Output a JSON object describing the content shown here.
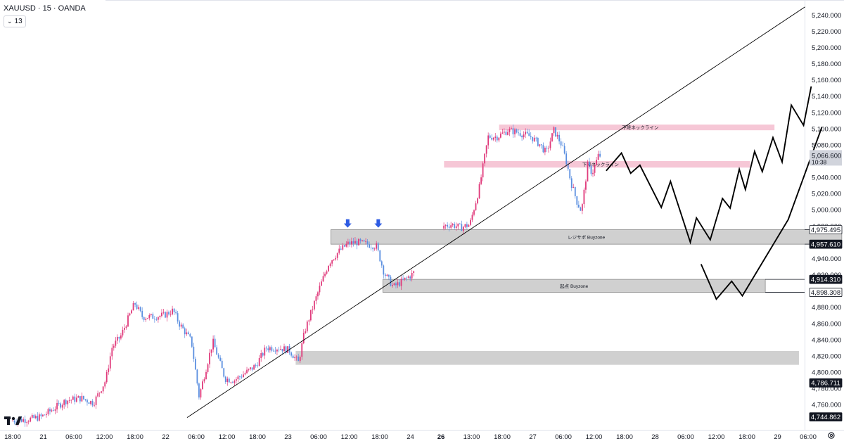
{
  "header": {
    "symbol_line": "XAUUSD · 15 · OANDA",
    "indicator_badge": "13"
  },
  "icons": {
    "logo": "tradingview-logo-icon",
    "settings": "gear-icon",
    "signal_markers": "arrow-down-icon"
  },
  "colors": {
    "bull_candle": "#e03a7b",
    "bear_candle": "#5b8fe0",
    "neckline_zone": "#f6c7d6",
    "buyzone": "#d0d0d0",
    "trendline": "#000000",
    "projection": "#000000",
    "arrow": "#2d5be3",
    "axis_label_dark_bg": "#131722"
  },
  "chart_data": {
    "type": "candlestick",
    "instrument": "XAUUSD",
    "timeframe": "15",
    "source": "OANDA",
    "ylim": [
      4735,
      5255
    ],
    "y_ticks": [
      4760,
      4780,
      4800,
      4820,
      4840,
      4860,
      4880,
      4900,
      4920,
      4940,
      4960,
      4980,
      5000,
      5020,
      5040,
      5060,
      5080,
      5100,
      5120,
      5140,
      5160,
      5180,
      5200,
      5220,
      5240
    ],
    "y_tick_labels": [
      "4,760.000",
      "4,780.000",
      "4,800.000",
      "4,820.000",
      "4,840.000",
      "4,860.000",
      "4,880.000",
      "4,900.000",
      "4,920.000",
      "4,940.000",
      "4,960.000",
      "4,980.000",
      "5,000.000",
      "5,020.000",
      "5,040.000",
      "5,060.000",
      "5,080.000",
      "5,100.000",
      "5,120.000",
      "5,140.000",
      "5,160.000",
      "5,180.000",
      "5,200.000",
      "5,220.000",
      "5,240.000"
    ],
    "price_labels": [
      {
        "label": "4,975.495",
        "value": 4975.495,
        "style": "outline"
      },
      {
        "label": "4,957.610",
        "value": 4957.61,
        "style": "dark"
      },
      {
        "label": "4,914.310",
        "value": 4914.31,
        "style": "dark"
      },
      {
        "label": "4,898.308",
        "value": 4898.308,
        "style": "outline"
      },
      {
        "label": "4,786.711",
        "value": 4786.711,
        "style": "dark"
      },
      {
        "label": "4,744.862",
        "value": 4744.862,
        "style": "dark"
      }
    ],
    "last_price": {
      "label": "5,066.600",
      "value": 5066.6,
      "countdown": "10:38"
    },
    "x_axis_labels": [
      {
        "label": "18:00",
        "t": 0
      },
      {
        "label": "21",
        "t": 1
      },
      {
        "label": "06:00",
        "t": 2
      },
      {
        "label": "12:00",
        "t": 3
      },
      {
        "label": "18:00",
        "t": 4
      },
      {
        "label": "22",
        "t": 5
      },
      {
        "label": "06:00",
        "t": 6
      },
      {
        "label": "12:00",
        "t": 7
      },
      {
        "label": "18:00",
        "t": 8
      },
      {
        "label": "23",
        "t": 9
      },
      {
        "label": "06:00",
        "t": 10
      },
      {
        "label": "12:00",
        "t": 11
      },
      {
        "label": "18:00",
        "t": 12
      },
      {
        "label": "24",
        "t": 13
      },
      {
        "label": "26",
        "t": 14,
        "bold": true
      },
      {
        "label": "13:00",
        "t": 15
      },
      {
        "label": "18:00",
        "t": 16
      },
      {
        "label": "27",
        "t": 17
      },
      {
        "label": "06:00",
        "t": 18
      },
      {
        "label": "12:00",
        "t": 19
      },
      {
        "label": "18:00",
        "t": 20
      },
      {
        "label": "28",
        "t": 21
      },
      {
        "label": "06:00",
        "t": 22
      },
      {
        "label": "12:00",
        "t": 23
      },
      {
        "label": "18:00",
        "t": 24
      },
      {
        "label": "29",
        "t": 25
      },
      {
        "label": "06:00",
        "t": 26
      }
    ],
    "price_path": [
      [
        0,
        4740
      ],
      [
        0.6,
        4742
      ],
      [
        1,
        4745
      ],
      [
        1.4,
        4755
      ],
      [
        1.8,
        4765
      ],
      [
        2.3,
        4768
      ],
      [
        2.7,
        4762
      ],
      [
        3.1,
        4790
      ],
      [
        3.3,
        4830
      ],
      [
        3.6,
        4845
      ],
      [
        3.9,
        4872
      ],
      [
        4.05,
        4885
      ],
      [
        4.3,
        4868
      ],
      [
        4.6,
        4868
      ],
      [
        5.0,
        4870
      ],
      [
        5.3,
        4876
      ],
      [
        5.5,
        4860
      ],
      [
        5.9,
        4838
      ],
      [
        6.15,
        4770
      ],
      [
        6.35,
        4800
      ],
      [
        6.6,
        4838
      ],
      [
        7.0,
        4792
      ],
      [
        7.3,
        4790
      ],
      [
        7.7,
        4800
      ],
      [
        8.0,
        4808
      ],
      [
        8.35,
        4830
      ],
      [
        8.75,
        4830
      ],
      [
        9.1,
        4827
      ],
      [
        9.4,
        4812
      ],
      [
        9.6,
        4850
      ],
      [
        9.85,
        4878
      ],
      [
        10.1,
        4905
      ],
      [
        10.4,
        4935
      ],
      [
        10.7,
        4948
      ],
      [
        11.0,
        4958
      ],
      [
        11.3,
        4960
      ],
      [
        11.6,
        4958
      ],
      [
        11.95,
        4955
      ],
      [
        12.2,
        4922
      ],
      [
        12.5,
        4905
      ],
      [
        12.8,
        4912
      ],
      [
        13.1,
        4920
      ],
      [
        13.4,
        4932
      ],
      [
        13.7,
        4955
      ],
      [
        14.1,
        4980
      ],
      [
        14.4,
        4982
      ],
      [
        14.7,
        4978
      ],
      [
        15.0,
        4982
      ],
      [
        15.3,
        5025
      ],
      [
        15.6,
        5090
      ],
      [
        15.9,
        5090
      ],
      [
        16.25,
        5098
      ],
      [
        16.6,
        5095
      ],
      [
        17.0,
        5090
      ],
      [
        17.3,
        5080
      ],
      [
        17.5,
        5070
      ],
      [
        17.75,
        5098
      ],
      [
        18.0,
        5080
      ],
      [
        18.15,
        5060
      ],
      [
        18.3,
        5035
      ],
      [
        18.5,
        5010
      ],
      [
        18.65,
        4998
      ],
      [
        18.85,
        5055
      ],
      [
        19.0,
        5045
      ],
      [
        19.2,
        5066.6
      ]
    ],
    "trendline": {
      "from": {
        "t": 5.7,
        "v": 4744
      },
      "to": {
        "t": 25.9,
        "v": 5250
      }
    },
    "zones": [
      {
        "label": "下降ネックライン",
        "kind": "neckline",
        "t0": 15.9,
        "t1": 24.9,
        "v0": 5098,
        "v1": 5105
      },
      {
        "label": "下降ネックライン",
        "kind": "neckline",
        "t0": 14.1,
        "t1": 24.1,
        "v0": 5052,
        "v1": 5060
      },
      {
        "label": "レジサポ Buyzone",
        "kind": "buyzone",
        "t0": 10.4,
        "t1": 27.1,
        "v0": 4957.6,
        "v1": 4975.5
      },
      {
        "label": "起点 Buyzone",
        "kind": "buyzone",
        "t0": 12.1,
        "t1": 24.6,
        "v0": 4898.3,
        "v1": 4914.3
      },
      {
        "label": "",
        "kind": "buyzone",
        "t0": 9.25,
        "t1": 25.7,
        "v0": 4809,
        "v1": 4826
      }
    ],
    "arrows": [
      {
        "t": 10.95,
        "v": 4978
      },
      {
        "t": 11.95,
        "v": 4978
      }
    ],
    "projection_a": [
      [
        19.4,
        5048
      ],
      [
        19.9,
        5070
      ],
      [
        20.2,
        5045
      ],
      [
        20.5,
        5055
      ],
      [
        21.2,
        5003
      ],
      [
        21.5,
        5035
      ],
      [
        22.15,
        4960
      ],
      [
        22.35,
        4990
      ],
      [
        22.8,
        4963
      ],
      [
        23.2,
        5014
      ],
      [
        23.45,
        5002
      ],
      [
        23.75,
        5050
      ],
      [
        23.95,
        5025
      ],
      [
        24.25,
        5072
      ],
      [
        24.5,
        5047
      ],
      [
        24.85,
        5089
      ],
      [
        25.15,
        5059
      ],
      [
        25.45,
        5129
      ],
      [
        25.85,
        5104
      ],
      [
        26.1,
        5152
      ]
    ],
    "projection_b": [
      [
        22.5,
        4933
      ],
      [
        23.0,
        4890
      ],
      [
        23.5,
        4912
      ],
      [
        23.85,
        4894
      ],
      [
        25.35,
        4988
      ],
      [
        26.45,
        5102
      ]
    ]
  }
}
